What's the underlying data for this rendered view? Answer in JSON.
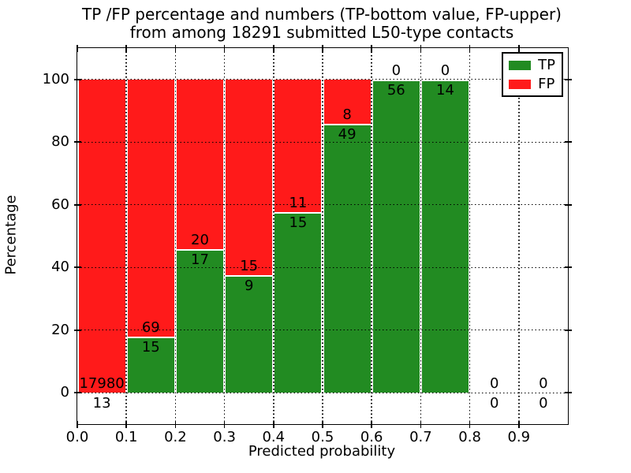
{
  "figure": {
    "title_line1": "TP /FP percentage and numbers (TP-bottom value, FP-upper)",
    "title_line2": "from among 18291 submitted L50-type contacts",
    "background": "#ffffff"
  },
  "axes": {
    "xlabel": "Predicted probability",
    "ylabel": "Percentage"
  },
  "legend": {
    "entries": [
      {
        "label": "TP",
        "color": "#228b22"
      },
      {
        "label": "FP",
        "color": "#ff1a1a"
      }
    ]
  },
  "chart_data": {
    "type": "bar",
    "stacked": true,
    "normalized_to_percent": true,
    "title": "TP /FP percentage and numbers (TP-bottom value, FP-upper) from among 18291 submitted L50-type contacts",
    "xlabel": "Predicted probability",
    "ylabel": "Percentage",
    "total_contacts": 18291,
    "bin_start": [
      0.0,
      0.1,
      0.2,
      0.3,
      0.4,
      0.5,
      0.6,
      0.7,
      0.8,
      0.9
    ],
    "bin_width": 0.1,
    "series": [
      {
        "name": "TP",
        "color": "#228b22",
        "counts": [
          13,
          15,
          17,
          9,
          15,
          49,
          56,
          14,
          0,
          0
        ]
      },
      {
        "name": "FP",
        "color": "#ff1a1a",
        "counts": [
          17980,
          69,
          20,
          15,
          11,
          8,
          0,
          0,
          0,
          0
        ]
      }
    ],
    "percent_tp": [
      0.07,
      17.86,
      45.95,
      37.5,
      57.69,
      85.96,
      100,
      100,
      null,
      null
    ],
    "xlim": [
      0.0,
      1.0
    ],
    "ylim": [
      -10,
      110
    ],
    "xticks": [
      0.0,
      0.1,
      0.2,
      0.3,
      0.4,
      0.5,
      0.6,
      0.7,
      0.8,
      0.9
    ],
    "xtick_labels": [
      "0.0",
      "0.1",
      "0.2",
      "0.3",
      "0.4",
      "0.5",
      "0.6",
      "0.7",
      "0.8",
      "0.9"
    ],
    "yticks": [
      0,
      20,
      40,
      60,
      80,
      100
    ],
    "ytick_labels": [
      "0",
      "20",
      "40",
      "60",
      "80",
      "100"
    ],
    "grid": true,
    "grid_style": "dotted",
    "legend_position": "upper right"
  }
}
